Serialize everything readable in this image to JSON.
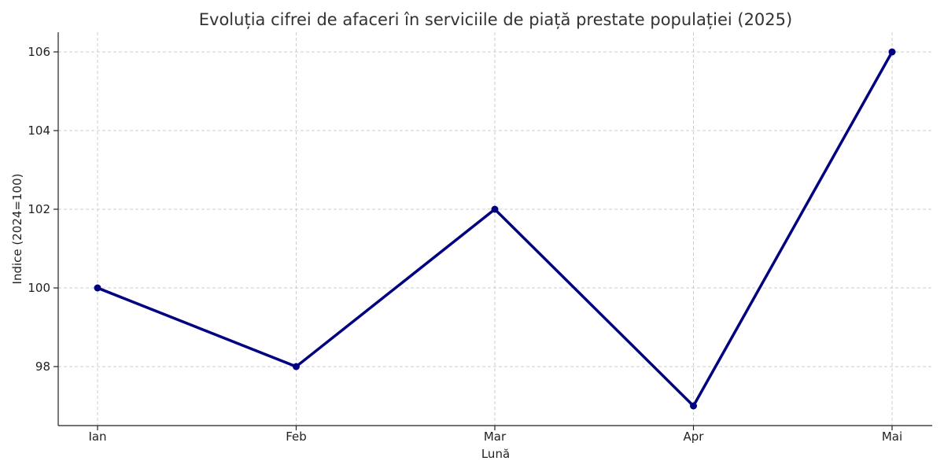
{
  "chart_data": {
    "type": "line",
    "title": "Evoluția cifrei de afaceri în serviciile de piață prestate populației (2025)",
    "xlabel": "Lună",
    "ylabel": "Indice (2024=100)",
    "categories": [
      "Ian",
      "Feb",
      "Mar",
      "Apr",
      "Mai"
    ],
    "series": [
      {
        "values": [
          100,
          98,
          102,
          97,
          106
        ],
        "color": "#000080"
      }
    ],
    "ylim": [
      96.5,
      106.5
    ],
    "yticks": [
      98,
      100,
      102,
      104,
      106
    ],
    "grid": true,
    "legend": "none"
  }
}
